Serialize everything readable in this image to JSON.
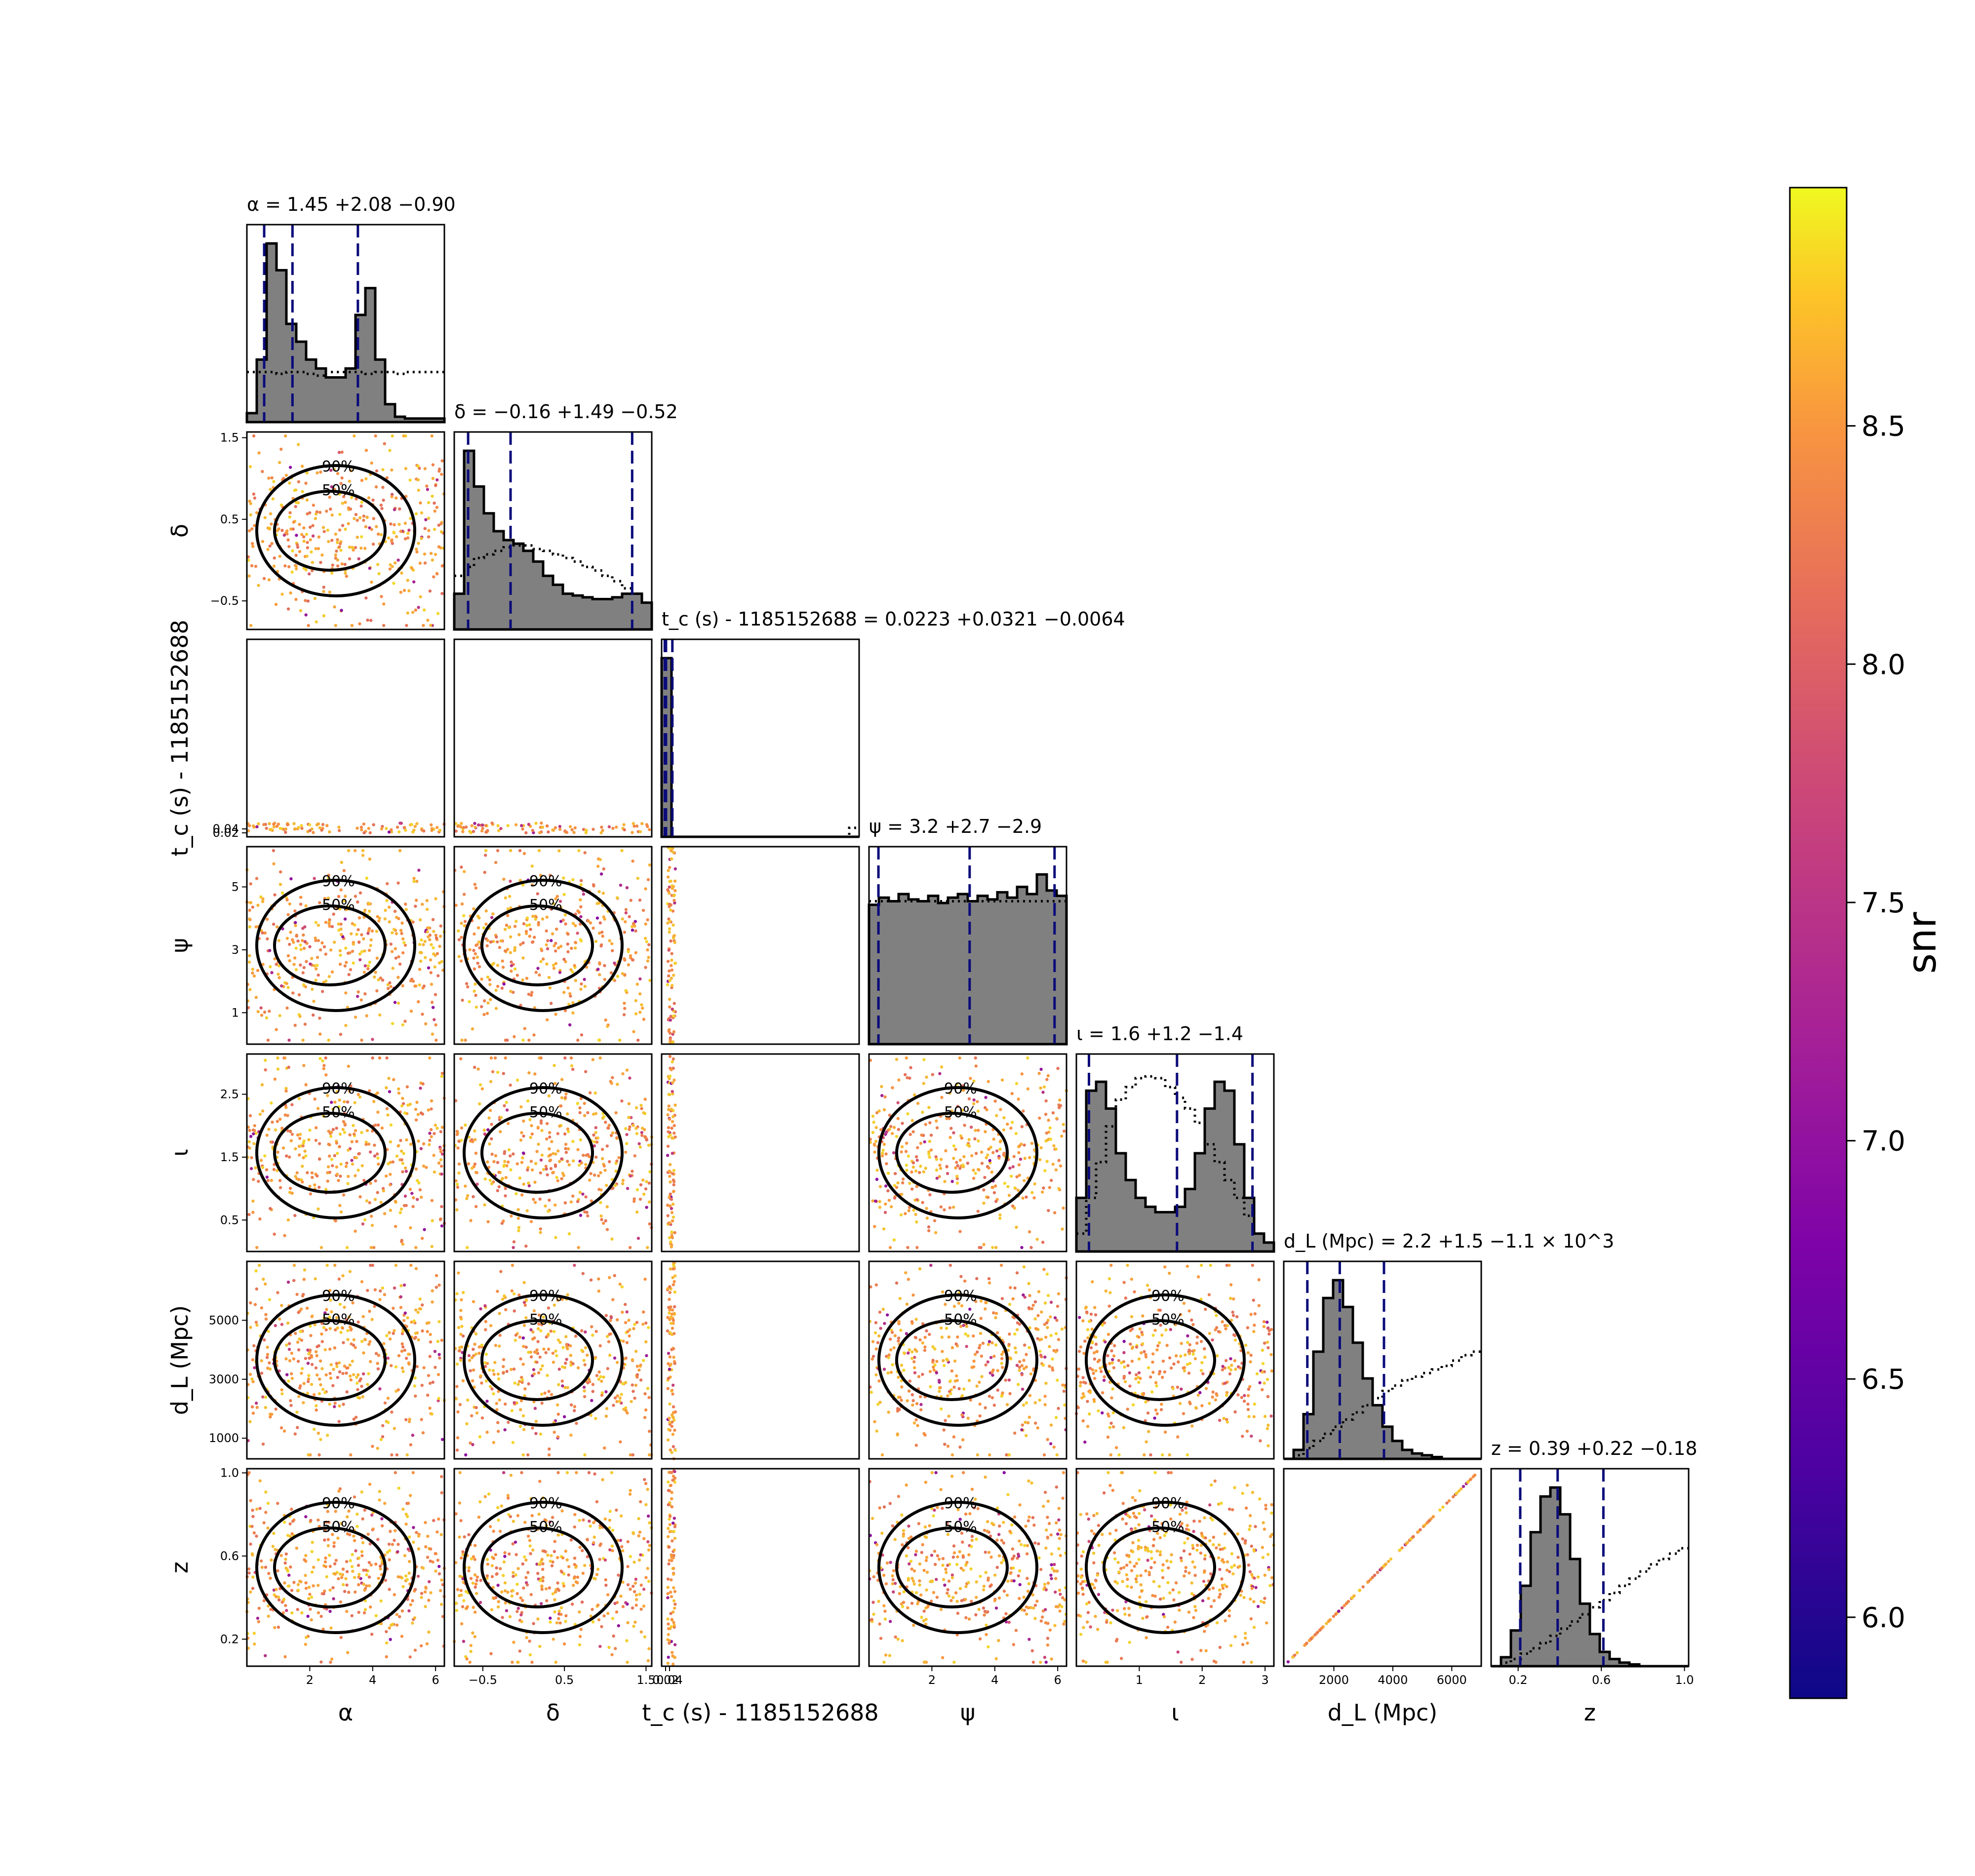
{
  "chart_data": {
    "type": "scatter",
    "title": "",
    "colorbar": {
      "label": "snr",
      "colormap": "plasma",
      "range": [
        5.83,
        9.0
      ],
      "ticks": [
        "6.0",
        "6.5",
        "7.0",
        "7.5",
        "8.0",
        "8.5"
      ]
    },
    "colors": {
      "hist_fill": "#808080",
      "hist_edge": "#000000",
      "quantile_line": "#0b0b7a",
      "contour": "#000000"
    },
    "parameters": [
      {
        "key": "alpha",
        "label": "α",
        "axis_label": "α",
        "title": "α = 1.45 +2.08 −0.90",
        "range": [
          0.0,
          6.28
        ],
        "median": 1.45,
        "q_low": 0.55,
        "q_high": 3.53,
        "ticks": [
          2,
          4,
          6
        ],
        "tick_labels": [
          "2",
          "4",
          "6"
        ]
      },
      {
        "key": "delta",
        "label": "δ",
        "axis_label": "δ",
        "title": "δ = −0.16 +1.49 −0.52",
        "range": [
          -0.85,
          1.57
        ],
        "median": -0.16,
        "q_low": -0.68,
        "q_high": 1.33,
        "ticks": [
          -0.5,
          0.5,
          1.5
        ],
        "tick_labels": [
          "−0.5",
          "0.5",
          "1.5"
        ]
      },
      {
        "key": "tc",
        "label": "t_c (s) - 1185152688",
        "axis_label": "t_c (s) - 1185152688",
        "title": "t_c (s) - 1185152688 = 0.0223 +0.0321 −0.0064",
        "range": [
          0.0,
          1.0
        ],
        "median": 0.0223,
        "q_low": 0.0159,
        "q_high": 0.0544,
        "ticks": [
          0.02,
          0.04
        ],
        "tick_labels": [
          "0.02",
          "0.04"
        ]
      },
      {
        "key": "psi",
        "label": "ψ",
        "axis_label": "ψ",
        "title": "ψ = 3.2 +2.7 −2.9",
        "range": [
          0.0,
          6.28
        ],
        "median": 3.2,
        "q_low": 0.3,
        "q_high": 5.9,
        "ticks": [
          2,
          4,
          6
        ],
        "tick_labels": [
          "2",
          "4",
          "6"
        ],
        "y_ticks": [
          1,
          3,
          5
        ],
        "y_tick_labels": [
          "1",
          "3",
          "5"
        ]
      },
      {
        "key": "iota",
        "label": "ι",
        "axis_label": "ι",
        "title": "ι = 1.6 +1.2 −1.4",
        "range": [
          0.0,
          3.14
        ],
        "median": 1.6,
        "q_low": 0.2,
        "q_high": 2.8,
        "ticks": [
          1,
          2,
          3
        ],
        "tick_labels": [
          "1",
          "2",
          "3"
        ],
        "y_ticks": [
          0.5,
          1.5,
          2.5
        ],
        "y_tick_labels": [
          "0.5",
          "1.5",
          "2.5"
        ]
      },
      {
        "key": "dL",
        "label": "d_L (Mpc)",
        "axis_label": "d_L (Mpc)",
        "title": "d_L (Mpc) = 2.2 +1.5 −1.1 × 10^3",
        "range": [
          300,
          7000
        ],
        "median": 2200,
        "q_low": 1100,
        "q_high": 3700,
        "ticks": [
          2000,
          4000,
          6000
        ],
        "tick_labels": [
          "2000",
          "4000",
          "6000"
        ],
        "y_ticks": [
          1000,
          3000,
          5000
        ],
        "y_tick_labels": [
          "1000",
          "3000",
          "5000"
        ]
      },
      {
        "key": "z",
        "label": "z",
        "axis_label": "z",
        "title": "z = 0.39 +0.22 −0.18",
        "range": [
          0.07,
          1.02
        ],
        "median": 0.39,
        "q_low": 0.21,
        "q_high": 0.61,
        "ticks": [
          0.2,
          0.6,
          1.0
        ],
        "tick_labels": [
          "0.2",
          "0.6",
          "1.0"
        ],
        "y_ticks": [
          0.2,
          0.6,
          1.0
        ],
        "y_tick_labels": [
          "0.2",
          "0.6",
          "1.0"
        ]
      }
    ],
    "histograms": {
      "alpha": {
        "posterior": [
          0.05,
          0.35,
          1.0,
          0.85,
          0.55,
          0.45,
          0.35,
          0.3,
          0.25,
          0.25,
          0.3,
          0.6,
          0.75,
          0.35,
          0.1,
          0.03,
          0.02,
          0.02,
          0.02,
          0.02
        ],
        "prior": [
          0.28,
          0.28,
          0.28,
          0.27,
          0.28,
          0.28,
          0.27,
          0.26,
          0.28,
          0.28,
          0.28,
          0.28,
          0.27,
          0.28,
          0.28,
          0.27,
          0.28,
          0.28,
          0.28,
          0.28
        ]
      },
      "delta": {
        "posterior": [
          0.2,
          1.0,
          0.8,
          0.65,
          0.55,
          0.5,
          0.48,
          0.44,
          0.38,
          0.3,
          0.25,
          0.2,
          0.19,
          0.18,
          0.17,
          0.17,
          0.18,
          0.2,
          0.2,
          0.15
        ],
        "prior": [
          0.3,
          0.35,
          0.4,
          0.42,
          0.44,
          0.46,
          0.47,
          0.47,
          0.45,
          0.44,
          0.42,
          0.4,
          0.38,
          0.35,
          0.33,
          0.3,
          0.27,
          0.23,
          0.2,
          0.15
        ]
      },
      "tc": {
        "posterior": [
          1.0,
          0.0,
          0.0,
          0.0,
          0.0,
          0.0,
          0.0,
          0.0,
          0.0,
          0.0,
          0.0,
          0.0,
          0.0,
          0.0,
          0.0,
          0.0,
          0.0,
          0.0,
          0.0,
          0.0
        ],
        "prior": [
          0.0,
          0.0,
          0.0,
          0.0,
          0.0,
          0.0,
          0.0,
          0.0,
          0.0,
          0.0,
          0.0,
          0.0,
          0.0,
          0.0,
          0.0,
          0.0,
          0.0,
          0.0,
          0.0,
          0.05
        ]
      },
      "psi": {
        "posterior": [
          0.78,
          0.82,
          0.8,
          0.84,
          0.81,
          0.8,
          0.83,
          0.79,
          0.82,
          0.84,
          0.8,
          0.83,
          0.81,
          0.85,
          0.82,
          0.88,
          0.84,
          0.95,
          0.86,
          0.83
        ],
        "prior": [
          0.8,
          0.8,
          0.8,
          0.8,
          0.8,
          0.8,
          0.8,
          0.8,
          0.8,
          0.8,
          0.8,
          0.8,
          0.8,
          0.8,
          0.8,
          0.8,
          0.8,
          0.8,
          0.8,
          0.8
        ]
      },
      "iota": {
        "posterior": [
          0.3,
          0.9,
          0.95,
          0.8,
          0.55,
          0.4,
          0.3,
          0.25,
          0.22,
          0.22,
          0.25,
          0.35,
          0.55,
          0.8,
          0.95,
          0.9,
          0.6,
          0.3,
          0.1,
          0.05
        ],
        "prior": [
          0.1,
          0.3,
          0.5,
          0.7,
          0.85,
          0.92,
          0.97,
          0.98,
          0.97,
          0.92,
          0.86,
          0.8,
          0.72,
          0.6,
          0.5,
          0.4,
          0.3,
          0.2,
          0.1,
          0.05
        ],
        "y_max": 1.0
      },
      "dL": {
        "posterior": [
          0.0,
          0.05,
          0.25,
          0.6,
          0.9,
          1.0,
          0.85,
          0.65,
          0.45,
          0.3,
          0.18,
          0.1,
          0.05,
          0.03,
          0.02,
          0.01,
          0.0,
          0.0,
          0.0,
          0.0
        ],
        "prior": [
          0.0,
          0.02,
          0.06,
          0.1,
          0.14,
          0.18,
          0.22,
          0.26,
          0.3,
          0.34,
          0.38,
          0.41,
          0.44,
          0.46,
          0.48,
          0.5,
          0.52,
          0.55,
          0.58,
          0.6
        ]
      },
      "z": {
        "posterior": [
          0.0,
          0.05,
          0.2,
          0.45,
          0.75,
          0.95,
          1.0,
          0.85,
          0.6,
          0.35,
          0.18,
          0.08,
          0.04,
          0.02,
          0.01,
          0.0,
          0.0,
          0.0,
          0.0,
          0.0
        ],
        "prior": [
          0.0,
          0.02,
          0.04,
          0.07,
          0.1,
          0.13,
          0.17,
          0.21,
          0.25,
          0.29,
          0.33,
          0.37,
          0.41,
          0.45,
          0.49,
          0.53,
          0.57,
          0.6,
          0.63,
          0.66
        ]
      }
    },
    "contour_levels": [
      "50%",
      "90%"
    ]
  }
}
